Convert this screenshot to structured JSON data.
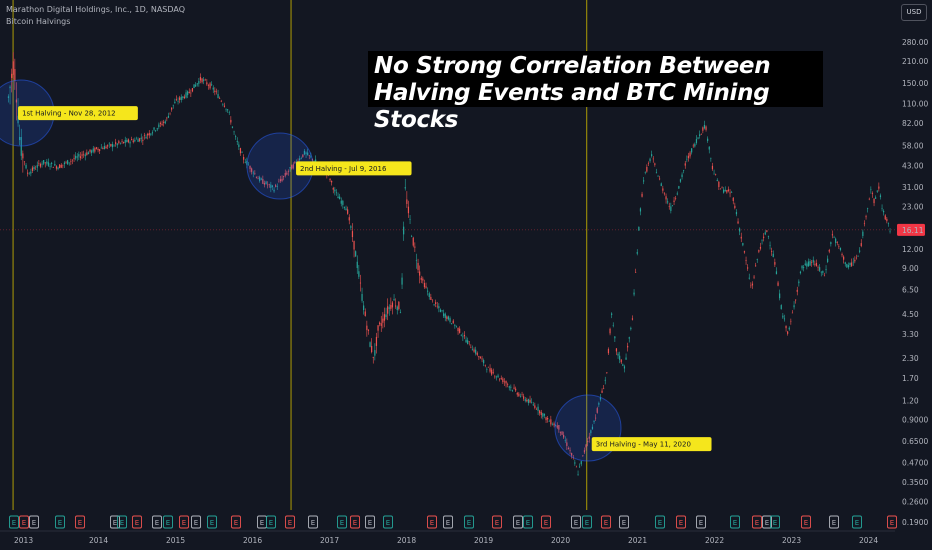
{
  "header": {
    "symbol_line": "Marathon Digital Holdings, Inc., 1D, NASDAQ",
    "indicator": "Bitcoin Halvings",
    "currency_button": "USD"
  },
  "banner": {
    "line1": "No Strong Correlation Between",
    "line2": "Halving Events and BTC Mining Stocks"
  },
  "colors": {
    "background": "#131722",
    "up": "#26a69a",
    "down": "#ef5350",
    "halving_line": "#c8b400",
    "label_bg": "#f5e61c",
    "circle_fill": "#2962ff",
    "price_line": "#f23645"
  },
  "chart_data": {
    "type": "candlestick",
    "title": "",
    "y_scale": "log",
    "yticks": [
      "280.00",
      "210.00",
      "150.00",
      "110.00",
      "82.00",
      "58.00",
      "43.00",
      "31.00",
      "23.00",
      "16.11",
      "12.00",
      "9.00",
      "6.50",
      "4.50",
      "3.30",
      "2.30",
      "1.70",
      "1.20",
      "0.9000",
      "0.6500",
      "0.4700",
      "0.3500",
      "0.2600",
      "0.1900"
    ],
    "xticks": [
      "2013",
      "2014",
      "2015",
      "2016",
      "2017",
      "2018",
      "2019",
      "2020",
      "2021",
      "2022",
      "2023",
      "2024"
    ],
    "last_price": 16.11,
    "halvings": [
      {
        "label": "1st Halving - Nov 28, 2012",
        "x": 2012.91,
        "y": 95
      },
      {
        "label": "2nd Halving - Jul 9, 2016",
        "x": 2016.52,
        "y": 41
      },
      {
        "label": "3rd Halving - May 11, 2020",
        "x": 2020.36,
        "y": 0.62
      }
    ],
    "price_path": [
      [
        2012.85,
        120
      ],
      [
        2012.92,
        210
      ],
      [
        2012.96,
        120
      ],
      [
        2013.0,
        60
      ],
      [
        2013.1,
        38
      ],
      [
        2013.3,
        45
      ],
      [
        2013.5,
        42
      ],
      [
        2013.8,
        50
      ],
      [
        2014.0,
        55
      ],
      [
        2014.3,
        60
      ],
      [
        2014.6,
        65
      ],
      [
        2014.9,
        85
      ],
      [
        2015.0,
        110
      ],
      [
        2015.2,
        130
      ],
      [
        2015.35,
        160
      ],
      [
        2015.5,
        140
      ],
      [
        2015.7,
        100
      ],
      [
        2015.8,
        65
      ],
      [
        2015.9,
        48
      ],
      [
        2016.1,
        35
      ],
      [
        2016.3,
        30
      ],
      [
        2016.5,
        40
      ],
      [
        2016.7,
        52
      ],
      [
        2016.85,
        45
      ],
      [
        2017.0,
        38
      ],
      [
        2017.1,
        28
      ],
      [
        2017.25,
        22
      ],
      [
        2017.35,
        12
      ],
      [
        2017.45,
        5.5
      ],
      [
        2017.55,
        2.8
      ],
      [
        2017.6,
        2.3
      ],
      [
        2017.65,
        3.5
      ],
      [
        2017.75,
        4.5
      ],
      [
        2017.85,
        5.5
      ],
      [
        2017.95,
        4.8
      ],
      [
        2018.0,
        30
      ],
      [
        2018.1,
        14
      ],
      [
        2018.2,
        8
      ],
      [
        2018.35,
        5.5
      ],
      [
        2018.5,
        4.5
      ],
      [
        2018.65,
        3.8
      ],
      [
        2018.8,
        3.0
      ],
      [
        2018.95,
        2.4
      ],
      [
        2019.1,
        1.9
      ],
      [
        2019.3,
        1.6
      ],
      [
        2019.5,
        1.3
      ],
      [
        2019.7,
        1.1
      ],
      [
        2019.85,
        0.9
      ],
      [
        2020.0,
        0.8
      ],
      [
        2020.15,
        0.55
      ],
      [
        2020.25,
        0.4
      ],
      [
        2020.35,
        0.6
      ],
      [
        2020.45,
        0.85
      ],
      [
        2020.55,
        1.3
      ],
      [
        2020.62,
        1.8
      ],
      [
        2020.68,
        4.5
      ],
      [
        2020.75,
        2.5
      ],
      [
        2020.85,
        2.0
      ],
      [
        2020.95,
        4.0
      ],
      [
        2021.0,
        9
      ],
      [
        2021.05,
        20
      ],
      [
        2021.1,
        35
      ],
      [
        2021.2,
        50
      ],
      [
        2021.3,
        35
      ],
      [
        2021.45,
        22
      ],
      [
        2021.55,
        30
      ],
      [
        2021.65,
        45
      ],
      [
        2021.8,
        65
      ],
      [
        2021.9,
        80
      ],
      [
        2022.0,
        40
      ],
      [
        2022.1,
        30
      ],
      [
        2022.25,
        28
      ],
      [
        2022.4,
        12
      ],
      [
        2022.5,
        6.5
      ],
      [
        2022.6,
        12
      ],
      [
        2022.7,
        16
      ],
      [
        2022.8,
        10
      ],
      [
        2022.9,
        4.5
      ],
      [
        2022.98,
        3.3
      ],
      [
        2023.05,
        5
      ],
      [
        2023.15,
        9
      ],
      [
        2023.3,
        10
      ],
      [
        2023.45,
        8
      ],
      [
        2023.55,
        15
      ],
      [
        2023.65,
        12
      ],
      [
        2023.75,
        9
      ],
      [
        2023.9,
        11
      ],
      [
        2024.0,
        22
      ],
      [
        2024.05,
        30
      ],
      [
        2024.1,
        24
      ],
      [
        2024.15,
        32
      ],
      [
        2024.2,
        22
      ],
      [
        2024.3,
        16.11
      ]
    ],
    "earnings_markers": [
      14,
      24,
      34,
      60,
      80,
      115,
      122,
      137,
      157,
      168,
      184,
      196,
      212,
      236,
      262,
      271,
      290,
      313,
      342,
      355,
      370,
      388,
      432,
      448,
      469,
      497,
      518,
      528,
      546,
      576,
      587,
      606,
      624,
      660,
      681,
      701,
      735,
      757,
      767,
      775,
      806,
      834,
      857,
      892
    ]
  }
}
